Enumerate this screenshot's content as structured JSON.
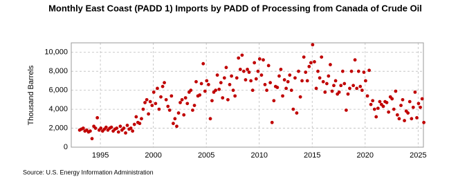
{
  "chart_data": {
    "type": "scatter",
    "title": "Monthly East Coast (PADD 1) Imports by PADD of Processing from Canada of Crude Oil",
    "y_label": "Thousand Barrels",
    "source": "Source: U.S. Energy Information Administration",
    "color": "#c00000",
    "grid": true,
    "xlim": [
      1992.25,
      2025.5
    ],
    "ylim": [
      0,
      11000
    ],
    "xticks": [
      1995,
      2000,
      2005,
      2010,
      2015,
      2020,
      2025
    ],
    "yticks": [
      0,
      {
        "value": 2000,
        "label": "2,000"
      },
      {
        "value": 4000,
        "label": "4,000"
      },
      {
        "value": 6000,
        "label": "6,000"
      },
      {
        "value": 8000,
        "label": "8,000"
      },
      {
        "value": 10000,
        "label": "10,000"
      }
    ],
    "x": [
      1993.04,
      1993.21,
      1993.38,
      1993.54,
      1993.71,
      1993.88,
      1994.04,
      1994.21,
      1994.38,
      1994.54,
      1994.71,
      1994.88,
      1995.04,
      1995.21,
      1995.38,
      1995.54,
      1995.71,
      1995.88,
      1996.04,
      1996.21,
      1996.38,
      1996.54,
      1996.71,
      1996.88,
      1997.04,
      1997.21,
      1997.38,
      1997.54,
      1997.71,
      1997.88,
      1998.04,
      1998.21,
      1998.38,
      1998.54,
      1998.71,
      1998.88,
      1999.04,
      1999.21,
      1999.38,
      1999.54,
      1999.71,
      1999.88,
      2000.04,
      2000.21,
      2000.38,
      2000.54,
      2000.71,
      2000.88,
      2001.04,
      2001.21,
      2001.38,
      2001.54,
      2001.71,
      2001.88,
      2002.04,
      2002.21,
      2002.38,
      2002.54,
      2002.71,
      2002.88,
      2003.04,
      2003.21,
      2003.38,
      2003.54,
      2003.71,
      2003.88,
      2004.04,
      2004.21,
      2004.38,
      2004.54,
      2004.71,
      2004.88,
      2005.04,
      2005.21,
      2005.38,
      2005.54,
      2005.71,
      2005.88,
      2006.04,
      2006.21,
      2006.38,
      2006.54,
      2006.71,
      2006.88,
      2007.04,
      2007.21,
      2007.38,
      2007.54,
      2007.71,
      2007.88,
      2008.04,
      2008.21,
      2008.38,
      2008.54,
      2008.71,
      2008.88,
      2009.04,
      2009.21,
      2009.38,
      2009.54,
      2009.71,
      2009.88,
      2010.04,
      2010.21,
      2010.38,
      2010.54,
      2010.71,
      2010.88,
      2011.04,
      2011.21,
      2011.38,
      2011.54,
      2011.71,
      2011.88,
      2012.04,
      2012.21,
      2012.38,
      2012.54,
      2012.71,
      2012.88,
      2013.04,
      2013.21,
      2013.38,
      2013.54,
      2013.71,
      2013.88,
      2014.04,
      2014.21,
      2014.38,
      2014.54,
      2014.71,
      2014.88,
      2015.04,
      2015.21,
      2015.38,
      2015.54,
      2015.71,
      2015.88,
      2016.04,
      2016.21,
      2016.38,
      2016.54,
      2016.71,
      2016.88,
      2017.04,
      2017.21,
      2017.38,
      2017.54,
      2017.71,
      2017.88,
      2018.04,
      2018.21,
      2018.38,
      2018.54,
      2018.71,
      2018.88,
      2019.04,
      2019.21,
      2019.38,
      2019.54,
      2019.71,
      2019.88,
      2020.04,
      2020.21,
      2020.38,
      2020.54,
      2020.71,
      2020.88,
      2021.04,
      2021.21,
      2021.38,
      2021.54,
      2021.71,
      2021.88,
      2022.04,
      2022.21,
      2022.38,
      2022.54,
      2022.71,
      2022.88,
      2023.04,
      2023.21,
      2023.38,
      2023.54,
      2023.71,
      2023.88,
      2024.04,
      2024.21,
      2024.38,
      2024.54,
      2024.71,
      2024.88,
      2025.04,
      2025.21,
      2025.38,
      2025.54
    ],
    "values": [
      1800,
      1900,
      2000,
      1700,
      1800,
      1600,
      1700,
      900,
      2200,
      2000,
      3100,
      1800,
      2000,
      1700,
      1900,
      2100,
      1800,
      2000,
      2100,
      1700,
      1900,
      2000,
      1600,
      2200,
      1800,
      2000,
      1500,
      2300,
      1900,
      2000,
      1700,
      2400,
      3200,
      2600,
      2500,
      3000,
      4000,
      4700,
      5000,
      3500,
      4800,
      4400,
      5800,
      4600,
      6200,
      4000,
      5300,
      6400,
      6800,
      5000,
      4300,
      3900,
      5400,
      2500,
      3000,
      2200,
      3600,
      4700,
      5000,
      3400,
      5200,
      4600,
      5800,
      6000,
      3900,
      4400,
      6900,
      5400,
      5500,
      6700,
      8800,
      5900,
      7000,
      6600,
      3000,
      4900,
      5800,
      6000,
      7600,
      6100,
      6800,
      5200,
      7300,
      8400,
      5000,
      6600,
      7500,
      6000,
      5400,
      7300,
      9400,
      8200,
      9700,
      8000,
      7100,
      8200,
      7900,
      7000,
      6000,
      8900,
      7200,
      8000,
      9300,
      7600,
      9200,
      6600,
      6000,
      8600,
      6800,
      2600,
      4900,
      6400,
      6300,
      7500,
      8200,
      5400,
      7100,
      6200,
      6900,
      7600,
      6000,
      4000,
      7300,
      3600,
      8000,
      5300,
      7000,
      9500,
      7900,
      7000,
      8500,
      8900,
      10800,
      9000,
      6200,
      8000,
      7300,
      9500,
      6900,
      5800,
      6700,
      7500,
      8700,
      5900,
      6500,
      7000,
      5600,
      5800,
      6500,
      8000,
      6700,
      3900,
      5600,
      6200,
      8000,
      6500,
      9200,
      6200,
      8000,
      6400,
      6000,
      7900,
      7000,
      5400,
      8100,
      4500,
      4900,
      4000,
      3200,
      4100,
      4800,
      4500,
      4300,
      4800,
      4700,
      3700,
      5300,
      5100,
      4000,
      5900,
      3400,
      3000,
      4400,
      5000,
      2800,
      3800,
      3600,
      4800,
      3000,
      4200,
      5800,
      3100,
      4600,
      4200,
      5100,
      2600
    ]
  }
}
